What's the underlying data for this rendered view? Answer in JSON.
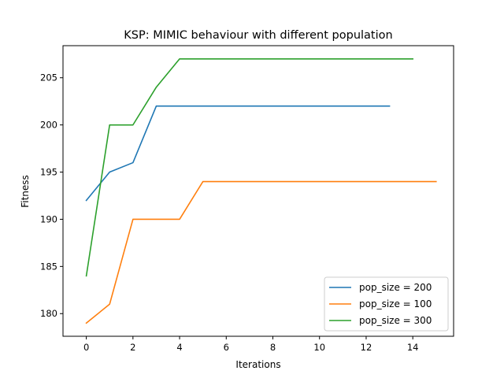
{
  "chart_data": {
    "type": "line",
    "title": "KSP: MIMIC behaviour with different population",
    "xlabel": "Iterations",
    "ylabel": "Fitness",
    "xlim": [
      -1.0,
      15.75
    ],
    "ylim": [
      177.6,
      208.4
    ],
    "xticks": [
      0,
      2,
      4,
      6,
      8,
      10,
      12,
      14
    ],
    "yticks": [
      180,
      185,
      190,
      195,
      200,
      205
    ],
    "grid": false,
    "legend_position": "lower right",
    "series": [
      {
        "name": "pop_size = 200",
        "color": "#1f77b4",
        "x": [
          0,
          1,
          2,
          3,
          4,
          5,
          6,
          7,
          8,
          9,
          10,
          11,
          12,
          13
        ],
        "y": [
          192,
          195,
          196,
          202,
          202,
          202,
          202,
          202,
          202,
          202,
          202,
          202,
          202,
          202
        ]
      },
      {
        "name": "pop_size = 100",
        "color": "#ff7f0e",
        "x": [
          0,
          1,
          2,
          3,
          4,
          5,
          6,
          7,
          8,
          9,
          10,
          11,
          12,
          13,
          14,
          15
        ],
        "y": [
          179,
          181,
          190,
          190,
          190,
          194,
          194,
          194,
          194,
          194,
          194,
          194,
          194,
          194,
          194,
          194
        ]
      },
      {
        "name": "pop_size = 300",
        "color": "#2ca02c",
        "x": [
          0,
          1,
          2,
          3,
          4,
          5,
          6,
          7,
          8,
          9,
          10,
          11,
          12,
          13,
          14
        ],
        "y": [
          184,
          200,
          200,
          204,
          207,
          207,
          207,
          207,
          207,
          207,
          207,
          207,
          207,
          207,
          207
        ]
      }
    ]
  }
}
